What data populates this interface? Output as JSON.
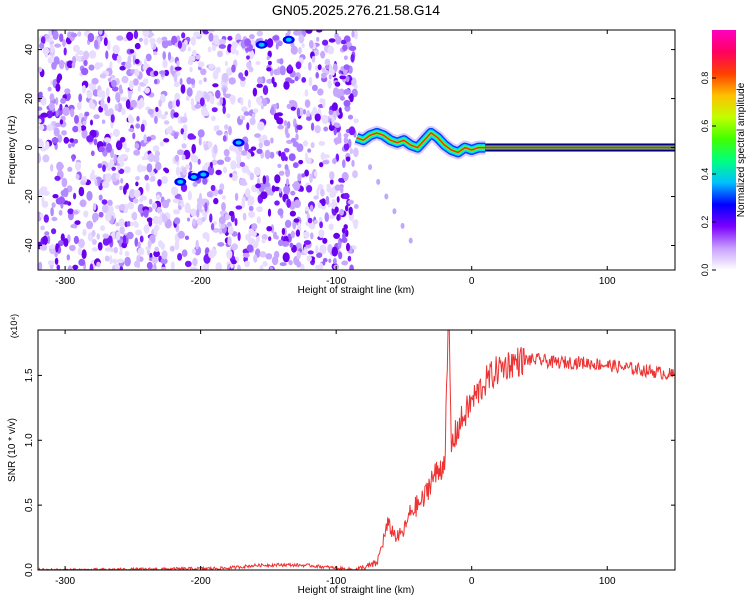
{
  "figure": {
    "title": "GN05.2025.276.21.58.G14"
  },
  "chart_data": [
    {
      "type": "heatmap",
      "title": "GN05.2025.276.21.58.G14",
      "xlabel": "Height of straight line (km)",
      "ylabel": "Frequency (Hz)",
      "xlim": [
        -320,
        150
      ],
      "ylim": [
        -50,
        48
      ],
      "xticks": [
        -300,
        -200,
        -100,
        0,
        100
      ],
      "yticks": [
        -40,
        -20,
        0,
        20,
        40
      ],
      "grid": false,
      "colorbar": {
        "label": "Normalized spectral amplitude",
        "range": [
          0,
          1
        ],
        "ticks": [
          "0.0",
          "0.2",
          "0.4",
          "0.6",
          "0.8"
        ],
        "colors": [
          "#ffffff",
          "#c8a0ff",
          "#7a00ff",
          "#0000ff",
          "#00c0ff",
          "#00ff80",
          "#40ff00",
          "#c0ff00",
          "#ffc000",
          "#ff4000",
          "#ff0060",
          "#ff00c0"
        ]
      },
      "noise_region_x": [
        -320,
        -85
      ],
      "ridge": {
        "x": [
          -85,
          -80,
          -75,
          -70,
          -65,
          -60,
          -55,
          -50,
          -45,
          -40,
          -35,
          -30,
          -25,
          -20,
          -15,
          -10,
          -5,
          0,
          5,
          10
        ],
        "y": [
          4,
          3,
          5,
          6,
          5,
          3,
          2,
          3,
          1,
          0,
          3,
          6,
          4,
          1,
          -1,
          -2,
          0,
          -1,
          0,
          0
        ]
      },
      "carrier": {
        "x": [
          10,
          150
        ],
        "frequency": 0
      },
      "blobs": [
        {
          "x": -215,
          "y": -14,
          "amplitude": 0.3
        },
        {
          "x": -205,
          "y": -12,
          "amplitude": 0.3
        },
        {
          "x": -198,
          "y": -11,
          "amplitude": 0.25
        },
        {
          "x": -172,
          "y": 2,
          "amplitude": 0.4
        },
        {
          "x": -155,
          "y": 42,
          "amplitude": 0.3
        },
        {
          "x": -135,
          "y": 44,
          "amplitude": 0.2
        }
      ]
    },
    {
      "type": "line",
      "xlabel": "Height of straight line (km)",
      "ylabel": "SNR (10 * v/v)",
      "y_multiplier": "(x10⁴)",
      "xlim": [
        -320,
        150
      ],
      "ylim": [
        0,
        1.85
      ],
      "xticks": [
        -300,
        -200,
        -100,
        0,
        100
      ],
      "yticks": [
        "0.0",
        "0.5",
        "1.0",
        "1.5"
      ],
      "grid": false,
      "series": [
        {
          "color": "#ee3333",
          "x": [
            -320,
            -280,
            -240,
            -200,
            -180,
            -160,
            -140,
            -120,
            -100,
            -85,
            -70,
            -62,
            -55,
            -50,
            -45,
            -40,
            -35,
            -30,
            -25,
            -20,
            -17,
            -15,
            -10,
            -5,
            0,
            10,
            20,
            30,
            40,
            50,
            60,
            80,
            100,
            120,
            140,
            150
          ],
          "y": [
            0.0,
            0.0,
            0.005,
            0.01,
            0.015,
            0.035,
            0.04,
            0.035,
            0.015,
            0.0,
            0.05,
            0.35,
            0.25,
            0.3,
            0.45,
            0.5,
            0.55,
            0.7,
            0.75,
            0.85,
            1.85,
            0.95,
            1.1,
            1.2,
            1.3,
            1.45,
            1.55,
            1.6,
            1.62,
            1.62,
            1.6,
            1.6,
            1.58,
            1.55,
            1.52,
            1.5
          ]
        }
      ]
    }
  ]
}
